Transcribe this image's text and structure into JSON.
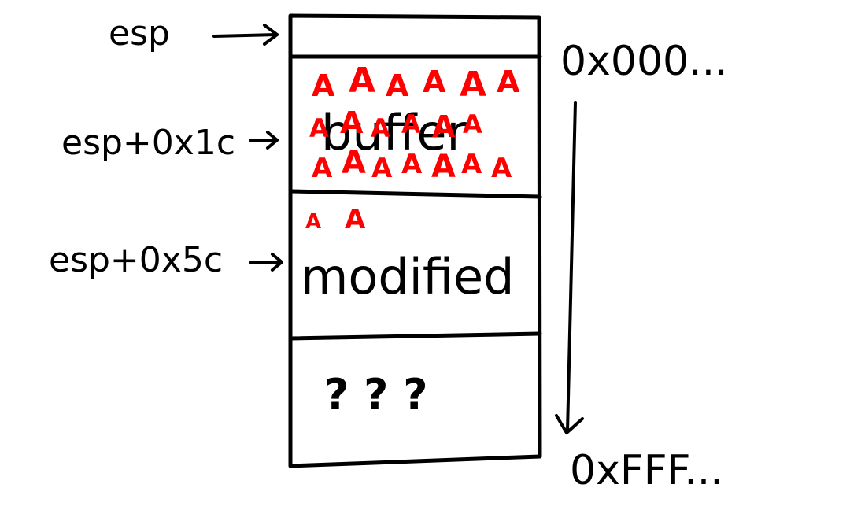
{
  "pointers": {
    "esp": "esp",
    "esp_1c": "esp+0x1c",
    "esp_5c": "esp+0x5c"
  },
  "addresses": {
    "low": "0x000...",
    "high": "0xFFF..."
  },
  "stack": {
    "buffer_label": "buffer",
    "modified_label": "modified",
    "unknown_label": "? ? ?"
  },
  "overflow": {
    "glyph": "A",
    "buffer_rows": [
      "AAAAAA",
      "AAAAAA",
      "AAAAAAA"
    ],
    "spill_row": "AA"
  },
  "colors": {
    "ink": "#000000",
    "overflow": "#ff0000",
    "background": "#ffffff"
  }
}
